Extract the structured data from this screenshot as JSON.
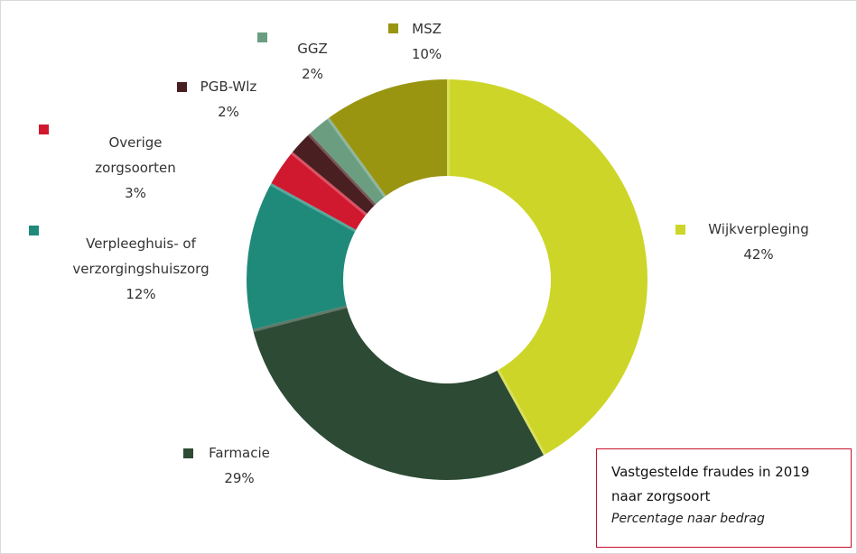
{
  "chart_data": {
    "type": "donut",
    "title": "Vastgestelde fraudes in 2019 naar zorgsoort",
    "subtitle": "Percentage naar bedrag",
    "categories": [
      "Wijkverpleging",
      "Farmacie",
      "Verpleeghuis- of verzorgingshuiszorg",
      "Overige zorgsoorten",
      "PGB-Wlz",
      "GGZ",
      "MSZ"
    ],
    "values": [
      42,
      29,
      12,
      3,
      2,
      2,
      10
    ],
    "value_labels": [
      "42%",
      "29%",
      "12%",
      "3%",
      "2%",
      "2%",
      "10%"
    ],
    "colors": [
      "#cdd628",
      "#2d4a35",
      "#1f8a7a",
      "#d0182f",
      "#4a1f22",
      "#6b9e80",
      "#9a9510"
    ]
  }
}
